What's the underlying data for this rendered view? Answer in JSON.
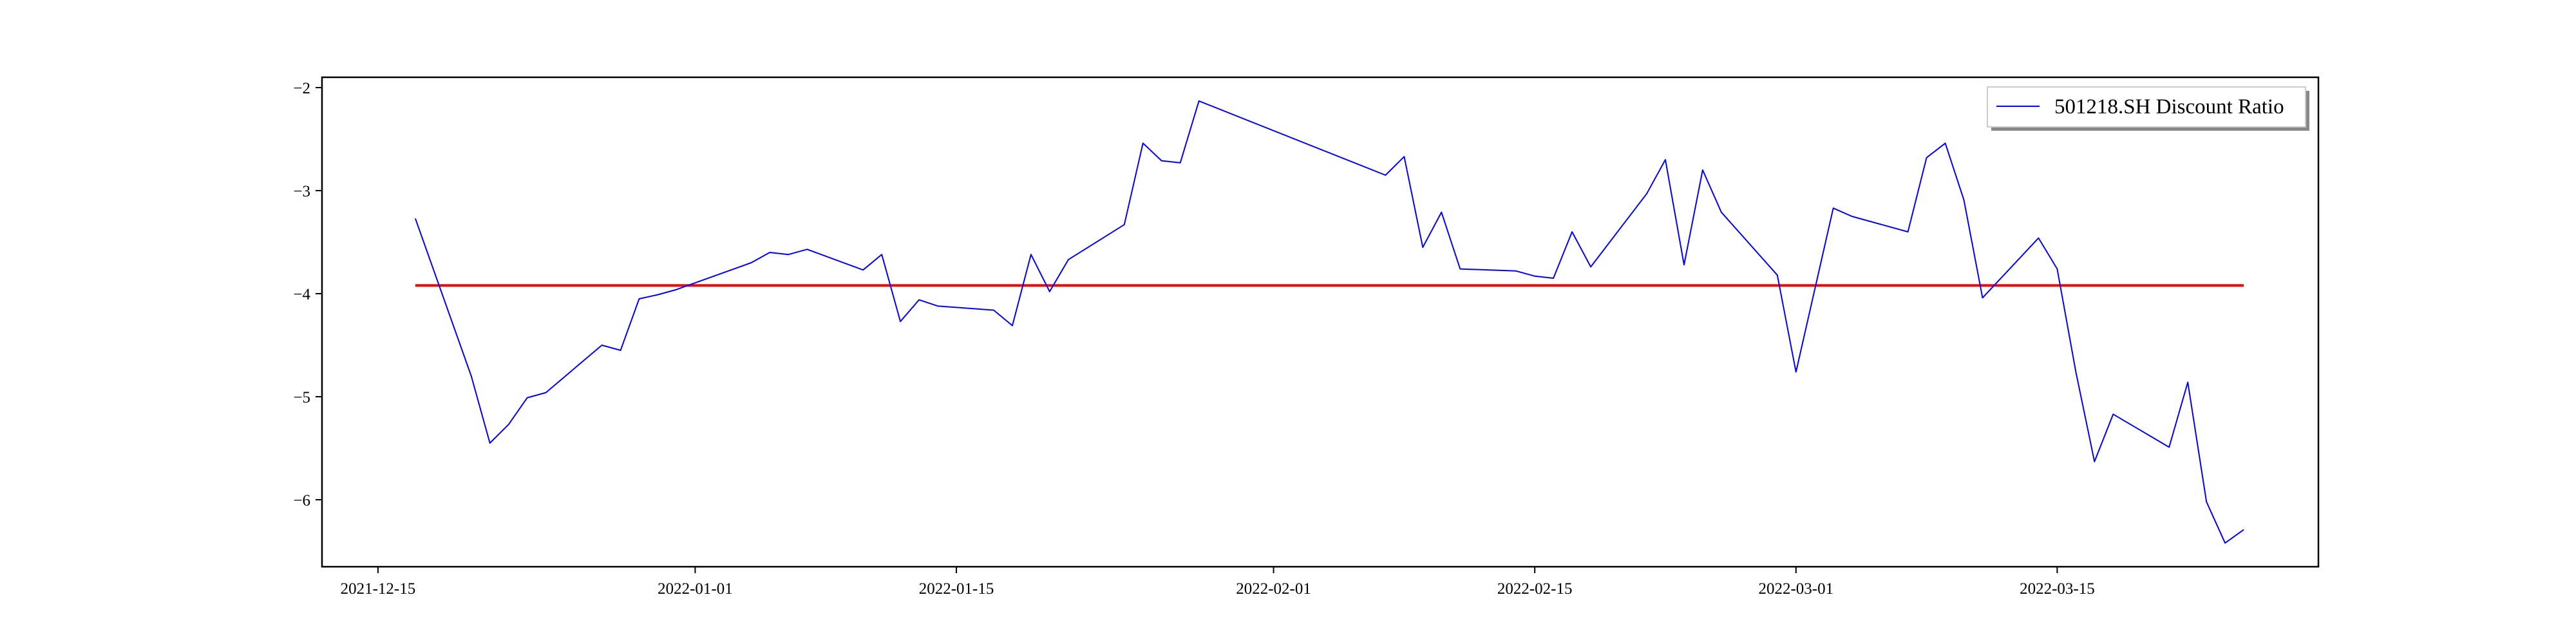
{
  "chart_data": {
    "type": "line",
    "title": "",
    "xlabel": "",
    "ylabel": "",
    "x_ticks": [
      "2021-12-15",
      "2022-01-01",
      "2022-01-15",
      "2022-02-01",
      "2022-02-15",
      "2022-03-01",
      "2022-03-15"
    ],
    "y_ticks": [
      -2,
      -3,
      -4,
      -5,
      -6
    ],
    "xlim": [
      "2021-12-12",
      "2022-03-29"
    ],
    "ylim": [
      -6.65,
      -1.9
    ],
    "grid": false,
    "legend": {
      "position": "top-right",
      "entries": [
        "501218.SH Discount Ratio"
      ]
    },
    "colors": {
      "series": "#0000ff",
      "reference": "#ff0000"
    },
    "series": [
      {
        "name": "501218.SH Discount Ratio",
        "x": [
          "2021-12-17",
          "2021-12-20",
          "2021-12-21",
          "2021-12-22",
          "2021-12-23",
          "2021-12-24",
          "2021-12-27",
          "2021-12-28",
          "2021-12-29",
          "2021-12-30",
          "2021-12-31",
          "2022-01-04",
          "2022-01-05",
          "2022-01-06",
          "2022-01-07",
          "2022-01-10",
          "2022-01-11",
          "2022-01-12",
          "2022-01-13",
          "2022-01-14",
          "2022-01-17",
          "2022-01-18",
          "2022-01-19",
          "2022-01-20",
          "2022-01-21",
          "2022-01-24",
          "2022-01-25",
          "2022-01-26",
          "2022-01-27",
          "2022-01-28",
          "2022-02-07",
          "2022-02-08",
          "2022-02-09",
          "2022-02-10",
          "2022-02-11",
          "2022-02-14",
          "2022-02-15",
          "2022-02-16",
          "2022-02-17",
          "2022-02-18",
          "2022-02-21",
          "2022-02-22",
          "2022-02-23",
          "2022-02-24",
          "2022-02-25",
          "2022-02-28",
          "2022-03-01",
          "2022-03-03",
          "2022-03-04",
          "2022-03-07",
          "2022-03-08",
          "2022-03-09",
          "2022-03-10",
          "2022-03-11",
          "2022-03-14",
          "2022-03-15",
          "2022-03-16",
          "2022-03-17",
          "2022-03-18",
          "2022-03-21",
          "2022-03-22",
          "2022-03-23",
          "2022-03-24",
          "2022-03-25"
        ],
        "values": [
          -3.27,
          -4.8,
          -5.45,
          -5.27,
          -5.01,
          -4.96,
          -4.5,
          -4.55,
          -4.05,
          -4.01,
          -3.96,
          -3.7,
          -3.6,
          -3.62,
          -3.57,
          -3.77,
          -3.62,
          -4.27,
          -4.06,
          -4.12,
          -4.16,
          -4.31,
          -3.62,
          -3.98,
          -3.67,
          -3.33,
          -2.54,
          -2.71,
          -2.73,
          -2.13,
          -2.85,
          -2.67,
          -3.55,
          -3.21,
          -3.76,
          -3.78,
          -3.83,
          -3.85,
          -3.4,
          -3.74,
          -3.03,
          -2.7,
          -3.72,
          -2.8,
          -3.21,
          -3.82,
          -4.76,
          -3.17,
          -3.25,
          -3.4,
          -2.68,
          -2.54,
          -3.09,
          -4.04,
          -3.46,
          -3.76,
          -4.76,
          -5.63,
          -5.17,
          -5.49,
          -4.86,
          -6.02,
          -6.42,
          -6.29
        ]
      },
      {
        "name": "",
        "x": [
          "2021-12-17",
          "2022-03-25"
        ],
        "values": [
          -3.92,
          -3.92
        ]
      }
    ]
  }
}
